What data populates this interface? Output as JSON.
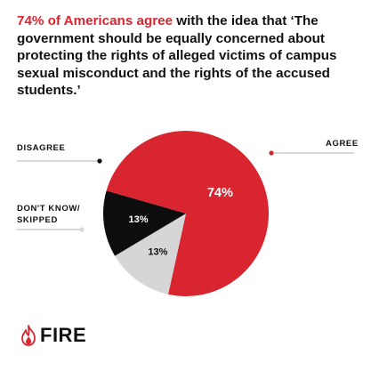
{
  "headline": {
    "highlight": "74% of Americans agree",
    "rest": " with the idea that ‘The government should be equally concerned about protecting the rights of alleged victims of campus sexual misconduct and the rights of the accused students.’"
  },
  "chart_data": {
    "type": "pie",
    "slices": [
      {
        "label": "AGREE",
        "value": 74,
        "value_label": "74%",
        "color": "#d92530"
      },
      {
        "label": "DON'T KNOW/\nSKIPPED",
        "value": 13,
        "value_label": "13%",
        "color": "#d6d6d6"
      },
      {
        "label": "DISAGREE",
        "value": 13,
        "value_label": "13%",
        "color": "#0d0d0d"
      }
    ]
  },
  "brand": {
    "name": "FIRE",
    "icon": "flame-icon",
    "color": "#d92530"
  }
}
